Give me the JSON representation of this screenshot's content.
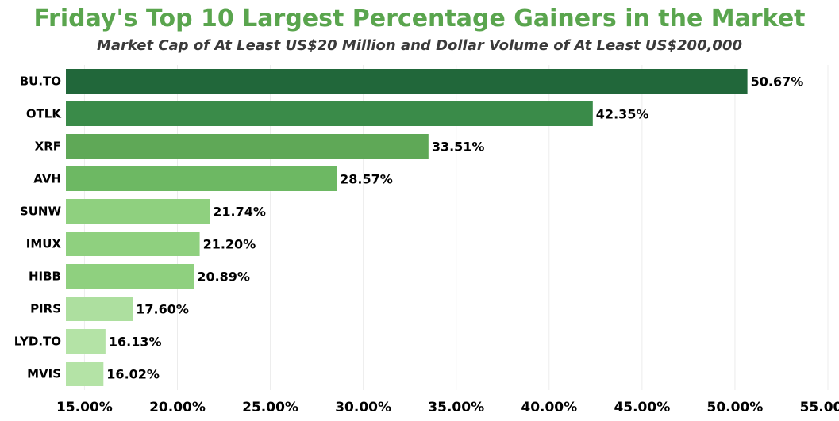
{
  "title": "Friday's Top 10 Largest Percentage Gainers in the Market",
  "subtitle": "Market Cap of At Least US$20 Million and Dollar Volume of At Least US$200,000",
  "chart_data": {
    "type": "bar",
    "orientation": "horizontal",
    "categories": [
      "BU.TO",
      "OTLK",
      "XRF",
      "AVH",
      "SUNW",
      "IMUX",
      "HIBB",
      "PIRS",
      "LYD.TO",
      "MVIS"
    ],
    "values": [
      50.67,
      42.35,
      33.51,
      28.57,
      21.74,
      21.2,
      20.89,
      17.6,
      16.13,
      16.02
    ],
    "value_labels": [
      "50.67%",
      "42.35%",
      "33.51%",
      "28.57%",
      "21.74%",
      "21.20%",
      "20.89%",
      "17.60%",
      "16.13%",
      "16.02%"
    ],
    "bar_colors": [
      "#21673a",
      "#3a8b49",
      "#5fa857",
      "#6db863",
      "#8fd07f",
      "#8fd07f",
      "#8fd07f",
      "#addf9f",
      "#b4e3a6",
      "#b4e3a6"
    ],
    "xlim": [
      14.0,
      55.0
    ],
    "xticks": [
      15,
      20,
      25,
      30,
      35,
      40,
      45,
      50,
      55
    ],
    "xtick_labels": [
      "15.00%",
      "20.00%",
      "25.00%",
      "30.00%",
      "35.00%",
      "40.00%",
      "45.00%",
      "50.00%",
      "55.00%"
    ],
    "grid": "vertical",
    "grid_color": "#ececec",
    "title_color": "#5aa54e"
  }
}
